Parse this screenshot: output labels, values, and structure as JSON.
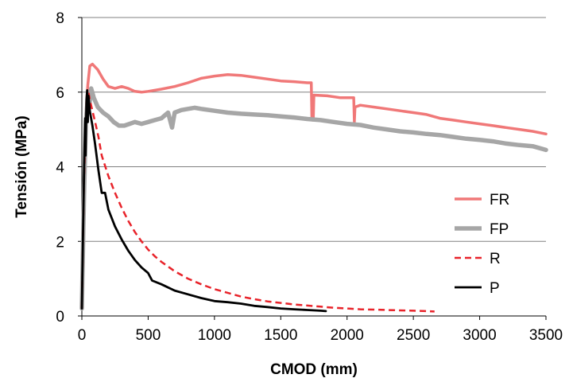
{
  "chart_data": {
    "type": "line",
    "xlabel": "CMOD (mm)",
    "ylabel": "Tensión (MPa)",
    "xlim": [
      0,
      3500
    ],
    "ylim": [
      0,
      8
    ],
    "x_ticks": [
      0,
      500,
      1000,
      1500,
      2000,
      2500,
      3000,
      3500
    ],
    "y_ticks": [
      0,
      2,
      4,
      6,
      8
    ],
    "grid": "horizontal",
    "legend_position": "right",
    "series": [
      {
        "name": "FR",
        "color": "#f07878",
        "style": "solid",
        "points": [
          [
            0,
            0.2
          ],
          [
            15,
            3.0
          ],
          [
            30,
            5.4
          ],
          [
            45,
            6.2
          ],
          [
            60,
            6.7
          ],
          [
            80,
            6.75
          ],
          [
            120,
            6.6
          ],
          [
            160,
            6.35
          ],
          [
            200,
            6.15
          ],
          [
            250,
            6.1
          ],
          [
            300,
            6.15
          ],
          [
            350,
            6.1
          ],
          [
            400,
            6.02
          ],
          [
            450,
            6.0
          ],
          [
            500,
            6.02
          ],
          [
            600,
            6.08
          ],
          [
            700,
            6.15
          ],
          [
            800,
            6.25
          ],
          [
            900,
            6.37
          ],
          [
            1000,
            6.43
          ],
          [
            1100,
            6.47
          ],
          [
            1200,
            6.45
          ],
          [
            1300,
            6.4
          ],
          [
            1400,
            6.35
          ],
          [
            1500,
            6.3
          ],
          [
            1600,
            6.28
          ],
          [
            1700,
            6.25
          ],
          [
            1730,
            6.25
          ],
          [
            1735,
            5.25
          ],
          [
            1745,
            5.25
          ],
          [
            1750,
            5.92
          ],
          [
            1850,
            5.9
          ],
          [
            1950,
            5.85
          ],
          [
            2050,
            5.85
          ],
          [
            2055,
            5.2
          ],
          [
            2060,
            5.6
          ],
          [
            2100,
            5.65
          ],
          [
            2200,
            5.6
          ],
          [
            2300,
            5.55
          ],
          [
            2400,
            5.5
          ],
          [
            2500,
            5.45
          ],
          [
            2600,
            5.4
          ],
          [
            2700,
            5.3
          ],
          [
            2800,
            5.25
          ],
          [
            2900,
            5.2
          ],
          [
            3000,
            5.15
          ],
          [
            3100,
            5.1
          ],
          [
            3200,
            5.05
          ],
          [
            3300,
            5.0
          ],
          [
            3400,
            4.95
          ],
          [
            3500,
            4.88
          ]
        ]
      },
      {
        "name": "FP",
        "color": "#a6a6a6",
        "style": "solid",
        "points": [
          [
            0,
            0.2
          ],
          [
            15,
            3.0
          ],
          [
            30,
            5.2
          ],
          [
            45,
            5.8
          ],
          [
            55,
            5.6
          ],
          [
            70,
            6.1
          ],
          [
            90,
            5.85
          ],
          [
            120,
            5.6
          ],
          [
            160,
            5.45
          ],
          [
            200,
            5.35
          ],
          [
            240,
            5.2
          ],
          [
            280,
            5.1
          ],
          [
            320,
            5.1
          ],
          [
            360,
            5.15
          ],
          [
            400,
            5.2
          ],
          [
            450,
            5.15
          ],
          [
            500,
            5.2
          ],
          [
            550,
            5.25
          ],
          [
            600,
            5.3
          ],
          [
            650,
            5.45
          ],
          [
            680,
            5.05
          ],
          [
            700,
            5.45
          ],
          [
            750,
            5.52
          ],
          [
            800,
            5.55
          ],
          [
            850,
            5.58
          ],
          [
            900,
            5.55
          ],
          [
            1000,
            5.5
          ],
          [
            1100,
            5.45
          ],
          [
            1200,
            5.42
          ],
          [
            1300,
            5.4
          ],
          [
            1400,
            5.38
          ],
          [
            1500,
            5.35
          ],
          [
            1600,
            5.32
          ],
          [
            1700,
            5.28
          ],
          [
            1800,
            5.25
          ],
          [
            1900,
            5.2
          ],
          [
            2000,
            5.15
          ],
          [
            2100,
            5.12
          ],
          [
            2200,
            5.05
          ],
          [
            2300,
            5.0
          ],
          [
            2400,
            4.95
          ],
          [
            2500,
            4.92
          ],
          [
            2600,
            4.88
          ],
          [
            2700,
            4.85
          ],
          [
            2800,
            4.8
          ],
          [
            2900,
            4.75
          ],
          [
            3000,
            4.72
          ],
          [
            3100,
            4.68
          ],
          [
            3200,
            4.62
          ],
          [
            3300,
            4.58
          ],
          [
            3400,
            4.55
          ],
          [
            3500,
            4.45
          ]
        ]
      },
      {
        "name": "R",
        "color": "#e8232a",
        "style": "dashed",
        "points": [
          [
            0,
            0.2
          ],
          [
            15,
            3.5
          ],
          [
            30,
            5.2
          ],
          [
            40,
            5.9
          ],
          [
            50,
            6.0
          ],
          [
            60,
            5.8
          ],
          [
            80,
            5.5
          ],
          [
            100,
            5.2
          ],
          [
            125,
            4.8
          ],
          [
            150,
            4.3
          ],
          [
            200,
            3.75
          ],
          [
            250,
            3.3
          ],
          [
            300,
            2.9
          ],
          [
            350,
            2.55
          ],
          [
            400,
            2.25
          ],
          [
            450,
            2.0
          ],
          [
            500,
            1.78
          ],
          [
            550,
            1.6
          ],
          [
            600,
            1.45
          ],
          [
            700,
            1.2
          ],
          [
            800,
            1.0
          ],
          [
            900,
            0.85
          ],
          [
            1000,
            0.72
          ],
          [
            1100,
            0.62
          ],
          [
            1200,
            0.52
          ],
          [
            1300,
            0.45
          ],
          [
            1400,
            0.39
          ],
          [
            1500,
            0.35
          ],
          [
            1600,
            0.31
          ],
          [
            1700,
            0.28
          ],
          [
            1800,
            0.25
          ],
          [
            1900,
            0.22
          ],
          [
            2000,
            0.2
          ],
          [
            2100,
            0.18
          ],
          [
            2200,
            0.17
          ],
          [
            2300,
            0.16
          ],
          [
            2400,
            0.15
          ],
          [
            2500,
            0.14
          ],
          [
            2600,
            0.13
          ],
          [
            2660,
            0.12
          ]
        ]
      },
      {
        "name": "P",
        "color": "#000000",
        "style": "solid",
        "points": [
          [
            0,
            0.2
          ],
          [
            10,
            2.5
          ],
          [
            20,
            4.5
          ],
          [
            25,
            5.3
          ],
          [
            28,
            4.3
          ],
          [
            35,
            5.8
          ],
          [
            40,
            6.05
          ],
          [
            45,
            5.2
          ],
          [
            50,
            5.9
          ],
          [
            60,
            5.5
          ],
          [
            80,
            5.1
          ],
          [
            100,
            4.6
          ],
          [
            125,
            3.9
          ],
          [
            150,
            3.3
          ],
          [
            175,
            3.3
          ],
          [
            200,
            2.85
          ],
          [
            250,
            2.4
          ],
          [
            300,
            2.05
          ],
          [
            350,
            1.75
          ],
          [
            400,
            1.5
          ],
          [
            450,
            1.3
          ],
          [
            500,
            1.15
          ],
          [
            530,
            0.95
          ],
          [
            600,
            0.85
          ],
          [
            700,
            0.68
          ],
          [
            800,
            0.58
          ],
          [
            900,
            0.48
          ],
          [
            1000,
            0.4
          ],
          [
            1100,
            0.37
          ],
          [
            1200,
            0.33
          ],
          [
            1300,
            0.27
          ],
          [
            1400,
            0.24
          ],
          [
            1500,
            0.2
          ],
          [
            1600,
            0.18
          ],
          [
            1700,
            0.16
          ],
          [
            1800,
            0.14
          ],
          [
            1840,
            0.13
          ]
        ]
      }
    ]
  }
}
